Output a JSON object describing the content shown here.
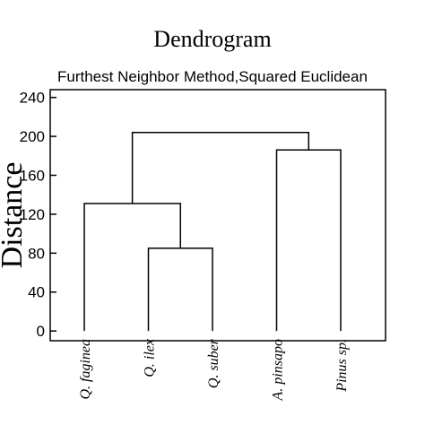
{
  "chart_data": {
    "type": "dendrogram",
    "title": "Dendrogram",
    "subtitle": "Furthest Neighbor Method,Squared Euclidean",
    "y_label": "Distance",
    "leaves": [
      "Q. faginea",
      "Q. ilex",
      "Q. suber",
      "A. pinsapo",
      "Pinus sp."
    ],
    "merges": [
      {
        "a": 1,
        "b": 2,
        "height": 85
      },
      {
        "a": 0,
        "b": 5,
        "height": 131
      },
      {
        "a": 3,
        "b": 4,
        "height": 186
      },
      {
        "a": 6,
        "b": 7,
        "height": 204
      }
    ],
    "ylim": [
      -10,
      248
    ],
    "yticks": [
      0,
      40,
      80,
      120,
      160,
      200,
      240
    ]
  }
}
